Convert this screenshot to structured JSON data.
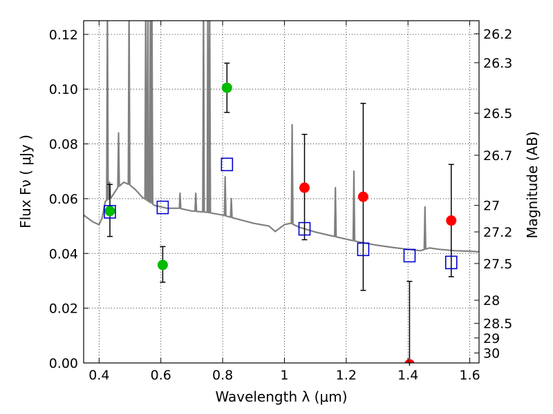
{
  "chart_data": {
    "type": "scatter",
    "xlabel": "Wavelength  λ (μm)",
    "ylabel": "Flux  Fν  ( μJy )",
    "ylabel_right": "Magnitude (AB)",
    "xlim": [
      0.35,
      1.63
    ],
    "ylim": [
      0.0,
      0.125
    ],
    "grid": true,
    "x_ticks": [
      {
        "v": 0.4,
        "label": "0.4"
      },
      {
        "v": 0.6,
        "label": "0.6"
      },
      {
        "v": 0.8,
        "label": "0.8"
      },
      {
        "v": 1.0,
        "label": "1"
      },
      {
        "v": 1.2,
        "label": "1.2"
      },
      {
        "v": 1.4,
        "label": "1.4"
      },
      {
        "v": 1.6,
        "label": "1.6"
      }
    ],
    "y_ticks": [
      {
        "v": 0.0,
        "label": "0.00"
      },
      {
        "v": 0.02,
        "label": "0.02"
      },
      {
        "v": 0.04,
        "label": "0.04"
      },
      {
        "v": 0.06,
        "label": "0.06"
      },
      {
        "v": 0.08,
        "label": "0.08"
      },
      {
        "v": 0.1,
        "label": "0.10"
      },
      {
        "v": 0.12,
        "label": "0.12"
      }
    ],
    "right_ticks": [
      {
        "mag": 26.2,
        "label": "26.2"
      },
      {
        "mag": 26.3,
        "label": "26.3"
      },
      {
        "mag": 26.5,
        "label": "26.5"
      },
      {
        "mag": 26.7,
        "label": "26.7"
      },
      {
        "mag": 27.0,
        "label": "27"
      },
      {
        "mag": 27.2,
        "label": "27.2"
      },
      {
        "mag": 27.5,
        "label": "27.5"
      },
      {
        "mag": 28.0,
        "label": "28"
      },
      {
        "mag": 28.5,
        "label": "28.5"
      },
      {
        "mag": 29.0,
        "label": "29"
      },
      {
        "mag": 30.0,
        "label": "30"
      }
    ],
    "series": [
      {
        "kind": "observed-optical",
        "marker": "circle",
        "color": "#00bb00",
        "points": [
          {
            "x": 0.435,
            "y": 0.0555,
            "err_lo": 0.0462,
            "err_hi": 0.0652
          },
          {
            "x": 0.606,
            "y": 0.0358,
            "err_lo": 0.0295,
            "err_hi": 0.0425
          },
          {
            "x": 0.814,
            "y": 0.1005,
            "err_lo": 0.0915,
            "err_hi": 0.1095
          }
        ]
      },
      {
        "kind": "observed-nir",
        "marker": "circle",
        "color": "#ff0000",
        "points": [
          {
            "x": 1.065,
            "y": 0.064,
            "err_lo": 0.045,
            "err_hi": 0.0835
          },
          {
            "x": 1.255,
            "y": 0.0607,
            "err_lo": 0.0265,
            "err_hi": 0.0948
          },
          {
            "x": 1.405,
            "y": -0.0005,
            "err_lo": -0.001,
            "err_hi": 0.0298
          },
          {
            "x": 1.54,
            "y": 0.052,
            "err_lo": 0.0315,
            "err_hi": 0.0725
          }
        ]
      },
      {
        "kind": "model-photometry",
        "marker": "square-open",
        "color": "#0000cc",
        "points": [
          {
            "x": 0.435,
            "y": 0.0552
          },
          {
            "x": 0.606,
            "y": 0.0568
          },
          {
            "x": 0.814,
            "y": 0.0725
          },
          {
            "x": 1.065,
            "y": 0.049
          },
          {
            "x": 1.255,
            "y": 0.0415
          },
          {
            "x": 1.405,
            "y": 0.0392
          },
          {
            "x": 1.54,
            "y": 0.0367
          }
        ]
      }
    ],
    "model_spectrum": {
      "color": "#808080",
      "continuum": [
        [
          0.35,
          0.054
        ],
        [
          0.38,
          0.0515
        ],
        [
          0.4,
          0.0505
        ],
        [
          0.41,
          0.053
        ],
        [
          0.42,
          0.059
        ],
        [
          0.44,
          0.0605
        ],
        [
          0.46,
          0.064
        ],
        [
          0.48,
          0.066
        ],
        [
          0.5,
          0.065
        ],
        [
          0.52,
          0.063
        ],
        [
          0.54,
          0.0605
        ],
        [
          0.56,
          0.059
        ],
        [
          0.58,
          0.0575
        ],
        [
          0.62,
          0.0565
        ],
        [
          0.66,
          0.0565
        ],
        [
          0.7,
          0.0555
        ],
        [
          0.75,
          0.055
        ],
        [
          0.8,
          0.054
        ],
        [
          0.85,
          0.0525
        ],
        [
          0.9,
          0.051
        ],
        [
          0.95,
          0.05
        ],
        [
          0.97,
          0.048
        ],
        [
          1.0,
          0.0505
        ],
        [
          1.02,
          0.051
        ],
        [
          1.05,
          0.0495
        ],
        [
          1.1,
          0.0478
        ],
        [
          1.15,
          0.0465
        ],
        [
          1.2,
          0.0452
        ],
        [
          1.25,
          0.044
        ],
        [
          1.3,
          0.043
        ],
        [
          1.35,
          0.0422
        ],
        [
          1.4,
          0.0415
        ],
        [
          1.44,
          0.041
        ],
        [
          1.47,
          0.042
        ],
        [
          1.5,
          0.0415
        ],
        [
          1.55,
          0.041
        ],
        [
          1.6,
          0.0408
        ],
        [
          1.63,
          0.0406
        ]
      ],
      "emission_lines": [
        {
          "x": 0.427,
          "peak": 0.13
        },
        {
          "x": 0.434,
          "peak": 0.066
        },
        {
          "x": 0.463,
          "peak": 0.084
        },
        {
          "x": 0.497,
          "peak": 0.13
        },
        {
          "x": 0.551,
          "peak": 0.13
        },
        {
          "x": 0.558,
          "peak": 0.13
        },
        {
          "x": 0.566,
          "peak": 0.13
        },
        {
          "x": 0.571,
          "peak": 0.13
        },
        {
          "x": 0.662,
          "peak": 0.062
        },
        {
          "x": 0.713,
          "peak": 0.062
        },
        {
          "x": 0.738,
          "peak": 0.13
        },
        {
          "x": 0.752,
          "peak": 0.13
        },
        {
          "x": 0.758,
          "peak": 0.13
        },
        {
          "x": 0.808,
          "peak": 0.068
        },
        {
          "x": 0.828,
          "peak": 0.06
        },
        {
          "x": 1.025,
          "peak": 0.087
        },
        {
          "x": 1.165,
          "peak": 0.064
        },
        {
          "x": 1.225,
          "peak": 0.07
        },
        {
          "x": 1.455,
          "peak": 0.057
        }
      ]
    }
  }
}
